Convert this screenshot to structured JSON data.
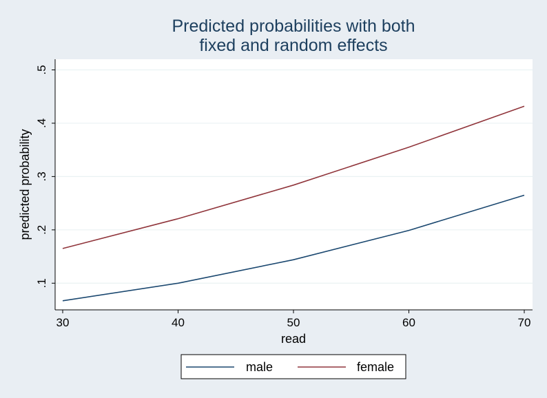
{
  "chart_data": {
    "type": "line",
    "title": [
      "Predicted probabilities with both",
      "fixed and random effects"
    ],
    "xlabel": "read",
    "ylabel": "predicted probability",
    "x": [
      30,
      40,
      50,
      60,
      70
    ],
    "xlim": [
      30,
      70
    ],
    "ylim": [
      0.05,
      0.52
    ],
    "xticks": [
      30,
      40,
      50,
      60,
      70
    ],
    "xtick_labels": [
      "30",
      "40",
      "50",
      "60",
      "70"
    ],
    "yticks": [
      0.1,
      0.2,
      0.3,
      0.4,
      0.5
    ],
    "ytick_labels": [
      ".1",
      ".2",
      ".3",
      ".4",
      ".5"
    ],
    "grid": true,
    "legend_position": "bottom",
    "series": [
      {
        "name": "male",
        "color": "#1a476f",
        "values": [
          0.067,
          0.1,
          0.144,
          0.199,
          0.265
        ]
      },
      {
        "name": "female",
        "color": "#90353b",
        "values": [
          0.165,
          0.221,
          0.284,
          0.355,
          0.432
        ]
      }
    ]
  }
}
